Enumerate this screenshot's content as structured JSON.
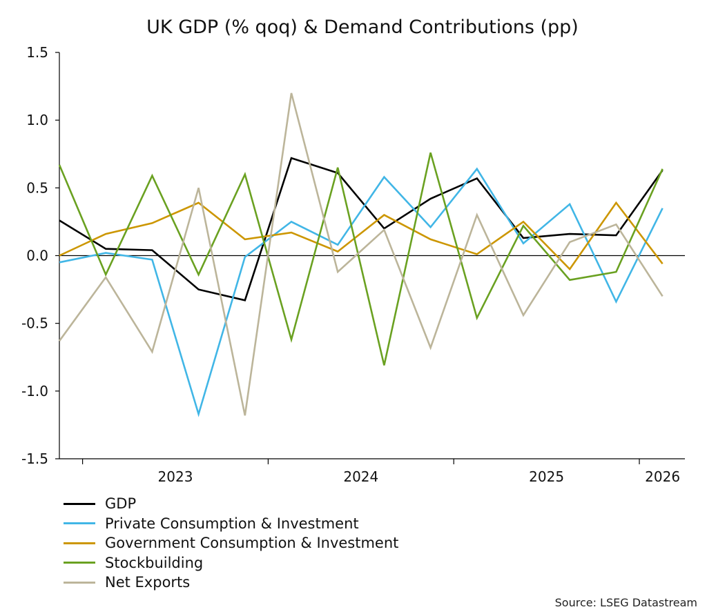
{
  "chart_data": {
    "type": "line",
    "title": "UK GDP (% qoq) & Demand Contributions (pp)",
    "xlabel": "",
    "ylabel": "",
    "ylim": [
      -1.5,
      1.5
    ],
    "yticks": [
      1.5,
      1.0,
      0.5,
      0.0,
      -0.5,
      -1.0,
      -1.5
    ],
    "ytick_labels": [
      "1.5",
      "1.0",
      "0.5",
      "0.0",
      "-0.5",
      "-1.0",
      "-1.5"
    ],
    "x": [
      "2022 Q4",
      "2023 Q1",
      "2023 Q2",
      "2023 Q3",
      "2023 Q4",
      "2024 Q1",
      "2024 Q2",
      "2024 Q3",
      "2024 Q4",
      "2025 Q1",
      "2025 Q2",
      "2025 Q3",
      "2025 Q4",
      "2026 Q1"
    ],
    "year_labels": [
      "2023",
      "2024",
      "2025",
      "2026"
    ],
    "grid": false,
    "legend_position": "bottom-left",
    "series": [
      {
        "name": "GDP",
        "color": "#000000",
        "values": [
          0.26,
          0.05,
          0.04,
          -0.25,
          -0.33,
          0.72,
          0.61,
          0.2,
          0.42,
          0.57,
          0.13,
          0.16,
          0.15,
          0.63
        ]
      },
      {
        "name": "Private Consumption & Investment",
        "color": "#41b6e6",
        "values": [
          -0.05,
          0.02,
          -0.03,
          -1.17,
          -0.01,
          0.25,
          0.08,
          0.58,
          0.21,
          0.64,
          0.09,
          0.38,
          -0.34,
          0.35
        ]
      },
      {
        "name": "Government Consumption & Investment",
        "color": "#cc9600",
        "values": [
          0.0,
          0.16,
          0.24,
          0.39,
          0.12,
          0.17,
          0.03,
          0.3,
          0.12,
          0.01,
          0.25,
          -0.1,
          0.39,
          -0.06
        ]
      },
      {
        "name": "Stockbuilding",
        "color": "#6aa121",
        "values": [
          0.67,
          -0.14,
          0.59,
          -0.14,
          0.6,
          -0.62,
          0.65,
          -0.81,
          0.76,
          -0.46,
          0.22,
          -0.18,
          -0.12,
          0.64
        ]
      },
      {
        "name": "Net Exports",
        "color": "#bcb59a",
        "values": [
          -0.63,
          -0.16,
          -0.71,
          0.5,
          -1.18,
          1.2,
          -0.12,
          0.19,
          -0.68,
          0.3,
          -0.44,
          0.1,
          0.23,
          -0.3
        ]
      }
    ]
  },
  "source": "Source: LSEG Datastream"
}
